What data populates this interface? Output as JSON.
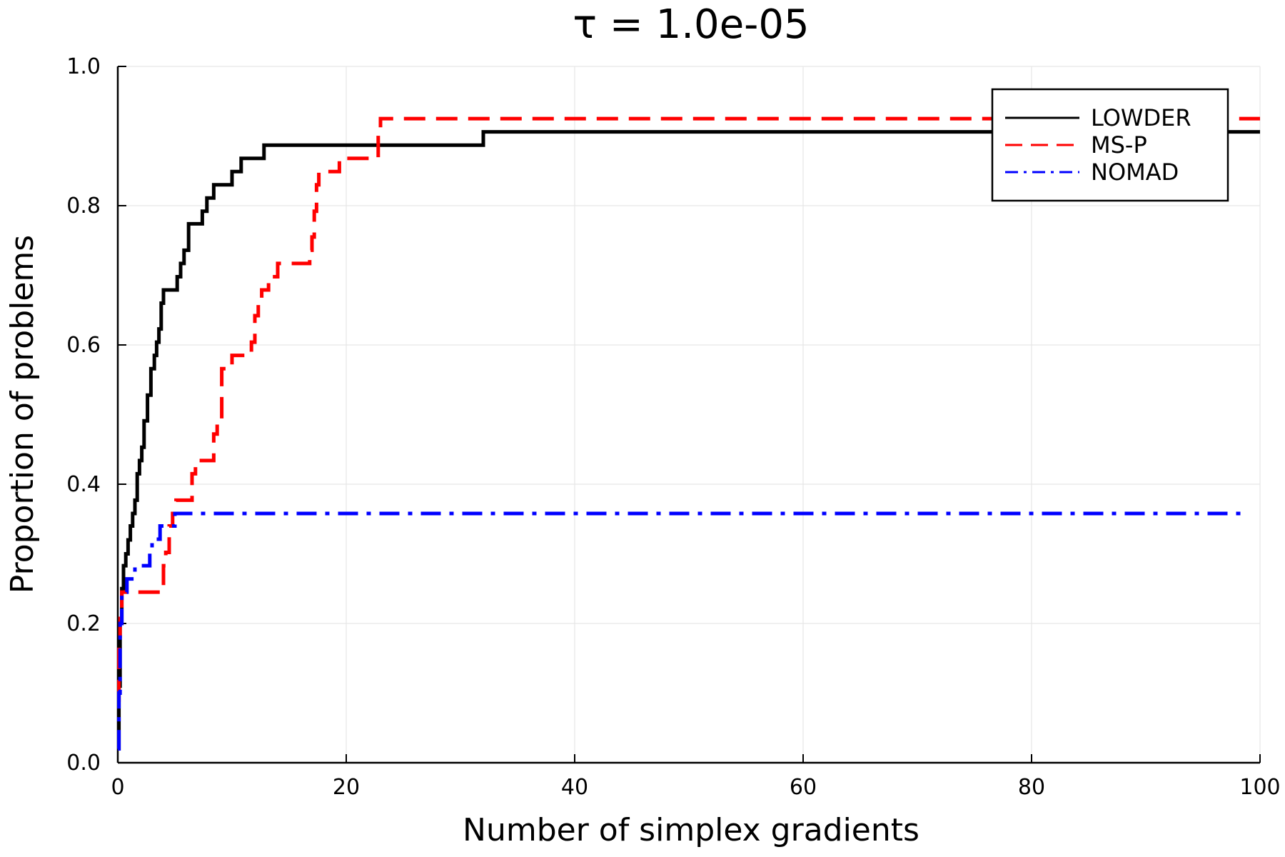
{
  "chart_data": {
    "type": "line",
    "title": "τ = 1.0e-05",
    "xlabel": "Number of simplex gradients",
    "ylabel": "Proportion of problems",
    "xlim": [
      0,
      100
    ],
    "ylim": [
      0,
      1
    ],
    "xticks": [
      "0",
      "20",
      "40",
      "60",
      "80",
      "100"
    ],
    "yticks": [
      "0.0",
      "0.2",
      "0.4",
      "0.6",
      "0.8",
      "1.0"
    ],
    "grid": true,
    "legend_position": "top-right",
    "step": true,
    "series": [
      {
        "name": "LOWDER",
        "color": "#000000",
        "dash": "solid",
        "x": [
          0,
          0.1,
          0.2,
          0.35,
          0.5,
          0.7,
          0.9,
          1.1,
          1.3,
          1.5,
          1.7,
          1.9,
          2.1,
          2.3,
          2.6,
          2.9,
          3.2,
          3.4,
          3.6,
          3.8,
          4.0,
          4.2,
          4.4,
          5.2,
          5.5,
          5.8,
          6.2,
          7.4,
          7.8,
          8.4,
          9.0,
          10.0,
          10.8,
          12.8,
          32,
          100
        ],
        "y": [
          0.02,
          0.11,
          0.2,
          0.25,
          0.283,
          0.3,
          0.32,
          0.34,
          0.358,
          0.377,
          0.415,
          0.434,
          0.453,
          0.491,
          0.528,
          0.566,
          0.585,
          0.604,
          0.623,
          0.66,
          0.679,
          0.679,
          0.679,
          0.698,
          0.717,
          0.736,
          0.774,
          0.792,
          0.811,
          0.83,
          0.83,
          0.849,
          0.868,
          0.887,
          0.906,
          0.906
        ]
      },
      {
        "name": "MS-P",
        "color": "#ff0000",
        "dash": "dash",
        "x": [
          0,
          0.1,
          0.2,
          0.35,
          3.8,
          4.0,
          4.2,
          4.5,
          4.8,
          5.1,
          6.5,
          6.8,
          7.0,
          8.4,
          8.7,
          9.1,
          9.3,
          10.0,
          11.7,
          12.0,
          12.3,
          12.6,
          13.2,
          14.0,
          16.8,
          17.0,
          17.2,
          17.4,
          17.6,
          19.4,
          20.4,
          22.8,
          23.0,
          100
        ],
        "y": [
          0.09,
          0.17,
          0.21,
          0.245,
          0.245,
          0.283,
          0.302,
          0.34,
          0.358,
          0.377,
          0.415,
          0.434,
          0.434,
          0.472,
          0.491,
          0.566,
          0.566,
          0.585,
          0.604,
          0.642,
          0.66,
          0.679,
          0.698,
          0.717,
          0.736,
          0.755,
          0.792,
          0.83,
          0.849,
          0.868,
          0.868,
          0.906,
          0.925,
          0.925
        ]
      },
      {
        "name": "NOMAD",
        "color": "#0000ff",
        "dash": "dashdot",
        "x": [
          0,
          0.1,
          0.2,
          0.35,
          0.8,
          1.1,
          1.5,
          2.5,
          2.8,
          3.0,
          3.3,
          3.7,
          4.2,
          4.6,
          5.0,
          99
        ],
        "y": [
          0.02,
          0.1,
          0.2,
          0.245,
          0.264,
          0.264,
          0.283,
          0.283,
          0.302,
          0.321,
          0.321,
          0.34,
          0.34,
          0.34,
          0.358,
          0.358
        ]
      }
    ]
  }
}
